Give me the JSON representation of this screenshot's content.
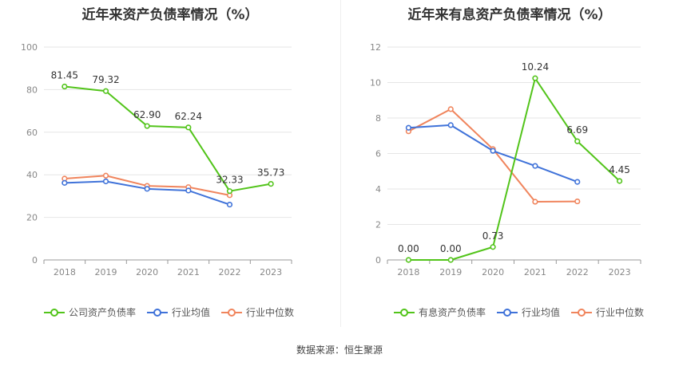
{
  "source_label": "数据来源：恒生聚源",
  "chart_data": [
    {
      "type": "line",
      "title": "近年来资产负债率情况（%）",
      "categories": [
        "2018",
        "2019",
        "2020",
        "2021",
        "2022",
        "2023"
      ],
      "ylim": [
        0,
        100
      ],
      "yticks": [
        0,
        20,
        40,
        60,
        80,
        100
      ],
      "grid": true,
      "legend_position": "bottom",
      "series": [
        {
          "name": "公司资产负债率",
          "color": "#52c41a",
          "values": [
            81.45,
            79.32,
            62.9,
            62.24,
            32.33,
            35.73
          ],
          "labels": [
            "81.45",
            "79.32",
            "62.90",
            "62.24",
            "32.33",
            "35.73"
          ]
        },
        {
          "name": "行业均值",
          "color": "#3f72d9",
          "values": [
            36.2,
            36.9,
            33.4,
            32.6,
            26.0,
            null
          ]
        },
        {
          "name": "行业中位数",
          "color": "#f0845c",
          "values": [
            38.2,
            39.6,
            34.8,
            34.2,
            30.4,
            null
          ]
        }
      ]
    },
    {
      "type": "line",
      "title": "近年来有息资产负债率情况（%）",
      "categories": [
        "2018",
        "2019",
        "2020",
        "2021",
        "2022",
        "2023"
      ],
      "ylim": [
        0,
        12
      ],
      "yticks": [
        0,
        2,
        4,
        6,
        8,
        10,
        12
      ],
      "grid": true,
      "legend_position": "bottom",
      "series": [
        {
          "name": "有息资产负债率",
          "color": "#52c41a",
          "values": [
            0.0,
            0.0,
            0.73,
            10.24,
            6.69,
            4.45
          ],
          "labels": [
            "0.00",
            "0.00",
            "0.73",
            "10.24",
            "6.69",
            "4.45"
          ]
        },
        {
          "name": "行业均值",
          "color": "#3f72d9",
          "values": [
            7.45,
            7.6,
            6.15,
            5.3,
            4.4,
            null
          ]
        },
        {
          "name": "行业中位数",
          "color": "#f0845c",
          "values": [
            7.25,
            8.5,
            6.25,
            3.28,
            3.3,
            null
          ]
        }
      ]
    }
  ]
}
